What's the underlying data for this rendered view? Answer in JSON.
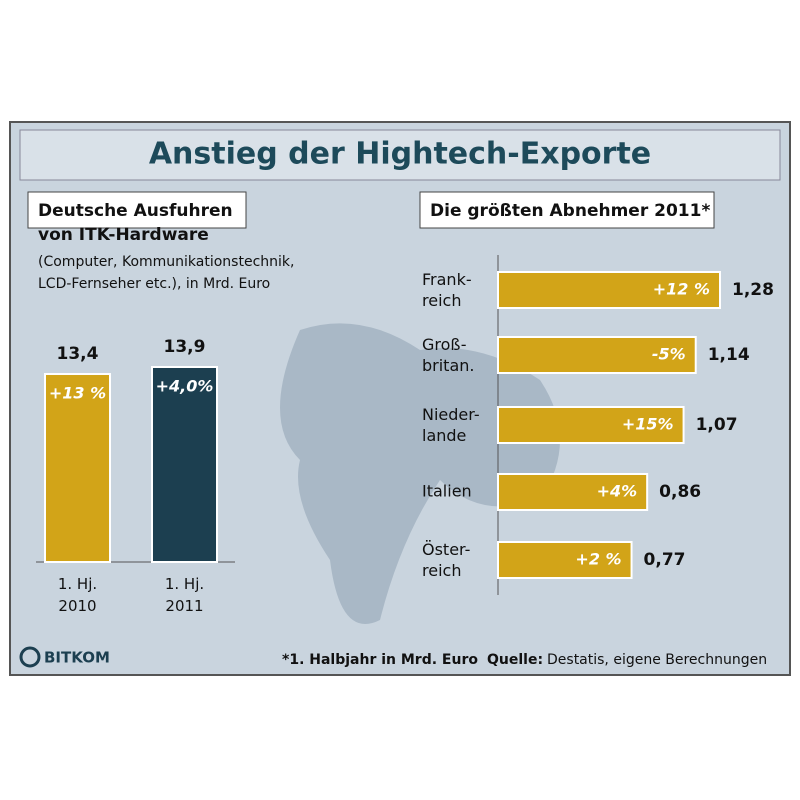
{
  "title": "Anstieg der Hightech-Exporte",
  "footnote": "*1. Halbjahr in Mrd. Euro",
  "source_label": "Quelle:",
  "source": "Destatis, eigene Berechnungen",
  "logo": "BITKOM",
  "chart_data": [
    {
      "type": "bar",
      "title": "Deutsche Ausfuhren\nvon ITK-Hardware",
      "subtitle": "(Computer, Kommunikationstechnik,\nLCD-Fernseher etc.), in Mrd. Euro",
      "categories": [
        "1. Hj.\n2010",
        "1. Hj.\n2011"
      ],
      "values": [
        13.4,
        13.9
      ],
      "value_labels": [
        "13,4",
        "13,9"
      ],
      "change_labels": [
        "+13 %",
        "+4,0%"
      ],
      "colors": [
        "#d2a418",
        "#1c3f50"
      ]
    },
    {
      "type": "hbar",
      "title": "Die größten Abnehmer 2011*",
      "categories": [
        "Frank-\nreich",
        "Groß-\nbritan.",
        "Nieder-\nlande",
        "Italien",
        "Öster-\nreich"
      ],
      "values": [
        1.28,
        1.14,
        1.07,
        0.86,
        0.77
      ],
      "value_labels": [
        "1,28",
        "1,14",
        "1,07",
        "0,86",
        "0,77"
      ],
      "change_labels": [
        "+12 %",
        "-5%",
        "+15%",
        "+4%",
        "+2 %"
      ],
      "color": "#d2a418"
    }
  ]
}
